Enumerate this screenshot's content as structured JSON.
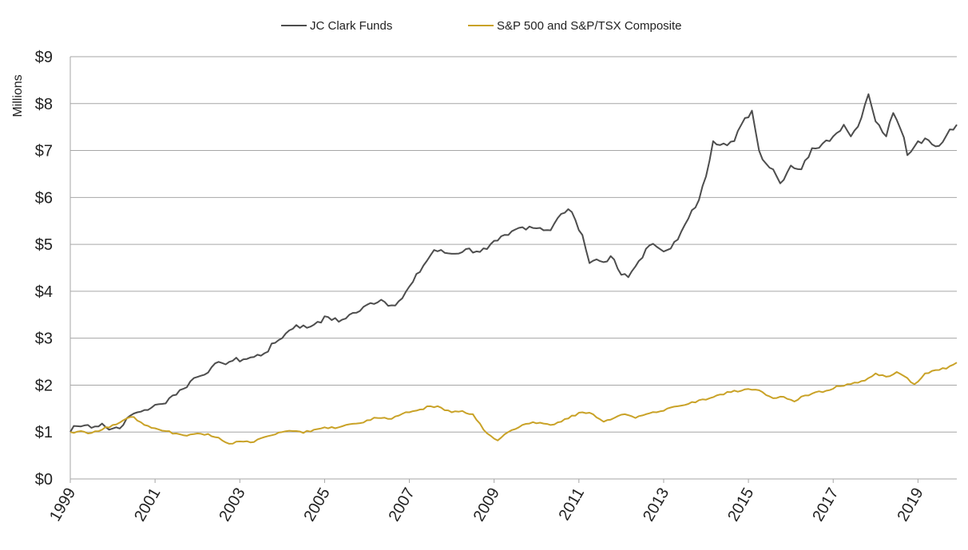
{
  "chart_data": {
    "type": "line",
    "title": "",
    "xlabel": "",
    "ylabel": "Millions",
    "x_start": "1999-01",
    "x_end": "2019-12",
    "x_ticks": [
      "1999",
      "2001",
      "2003",
      "2005",
      "2007",
      "2009",
      "2011",
      "2013",
      "2015",
      "2017",
      "2019"
    ],
    "ylim": [
      0,
      9
    ],
    "y_ticks": [
      "$0",
      "$1",
      "$2",
      "$3",
      "$4",
      "$5",
      "$6",
      "$7",
      "$8",
      "$9"
    ],
    "grid": "horizontal",
    "legend_position": "top-center",
    "series": [
      {
        "name": "JC Clark Funds",
        "color": "#4d4d4d",
        "points": [
          [
            "1999-01",
            1.0
          ],
          [
            "1999-02",
            1.13
          ],
          [
            "1999-04",
            1.12
          ],
          [
            "1999-06",
            1.15
          ],
          [
            "1999-08",
            1.12
          ],
          [
            "1999-10",
            1.18
          ],
          [
            "1999-12",
            1.05
          ],
          [
            "2000-02",
            1.1
          ],
          [
            "2000-04",
            1.15
          ],
          [
            "2000-06",
            1.35
          ],
          [
            "2000-08",
            1.42
          ],
          [
            "2000-10",
            1.47
          ],
          [
            "2000-12",
            1.52
          ],
          [
            "2001-03",
            1.6
          ],
          [
            "2001-06",
            1.78
          ],
          [
            "2001-09",
            1.92
          ],
          [
            "2001-12",
            2.15
          ],
          [
            "2002-02",
            2.2
          ],
          [
            "2002-05",
            2.38
          ],
          [
            "2002-08",
            2.47
          ],
          [
            "2002-11",
            2.52
          ],
          [
            "2003-02",
            2.55
          ],
          [
            "2003-05",
            2.6
          ],
          [
            "2003-08",
            2.68
          ],
          [
            "2003-11",
            2.9
          ],
          [
            "2004-02",
            3.1
          ],
          [
            "2004-05",
            3.28
          ],
          [
            "2004-08",
            3.22
          ],
          [
            "2004-11",
            3.35
          ],
          [
            "2005-02",
            3.45
          ],
          [
            "2005-05",
            3.35
          ],
          [
            "2005-08",
            3.5
          ],
          [
            "2005-11",
            3.58
          ],
          [
            "2006-02",
            3.75
          ],
          [
            "2006-05",
            3.82
          ],
          [
            "2006-08",
            3.7
          ],
          [
            "2006-11",
            3.85
          ],
          [
            "2007-02",
            4.2
          ],
          [
            "2007-05",
            4.55
          ],
          [
            "2007-08",
            4.88
          ],
          [
            "2007-11",
            4.82
          ],
          [
            "2008-02",
            4.8
          ],
          [
            "2008-05",
            4.9
          ],
          [
            "2008-08",
            4.85
          ],
          [
            "2008-11",
            4.9
          ],
          [
            "2009-02",
            5.08
          ],
          [
            "2009-05",
            5.2
          ],
          [
            "2009-08",
            5.35
          ],
          [
            "2009-11",
            5.38
          ],
          [
            "2010-02",
            5.35
          ],
          [
            "2010-05",
            5.3
          ],
          [
            "2010-08",
            5.65
          ],
          [
            "2010-10",
            5.75
          ],
          [
            "2010-12",
            5.52
          ],
          [
            "2011-02",
            5.2
          ],
          [
            "2011-04",
            4.6
          ],
          [
            "2011-06",
            4.68
          ],
          [
            "2011-08",
            4.62
          ],
          [
            "2011-10",
            4.75
          ],
          [
            "2012-01",
            4.35
          ],
          [
            "2012-03",
            4.3
          ],
          [
            "2012-06",
            4.65
          ],
          [
            "2012-09",
            4.98
          ],
          [
            "2012-11",
            4.95
          ],
          [
            "2013-02",
            4.88
          ],
          [
            "2013-05",
            5.1
          ],
          [
            "2013-08",
            5.55
          ],
          [
            "2013-11",
            5.95
          ],
          [
            "2014-01",
            6.45
          ],
          [
            "2014-03",
            7.2
          ],
          [
            "2014-06",
            7.15
          ],
          [
            "2014-09",
            7.2
          ],
          [
            "2014-11",
            7.55
          ],
          [
            "2015-02",
            7.85
          ],
          [
            "2015-04",
            7.0
          ],
          [
            "2015-06",
            6.72
          ],
          [
            "2015-08",
            6.6
          ],
          [
            "2015-10",
            6.3
          ],
          [
            "2016-01",
            6.68
          ],
          [
            "2016-04",
            6.6
          ],
          [
            "2016-07",
            7.05
          ],
          [
            "2016-10",
            7.15
          ],
          [
            "2017-01",
            7.3
          ],
          [
            "2017-04",
            7.55
          ],
          [
            "2017-06",
            7.3
          ],
          [
            "2017-09",
            7.7
          ],
          [
            "2017-11",
            8.2
          ],
          [
            "2018-01",
            7.62
          ],
          [
            "2018-04",
            7.3
          ],
          [
            "2018-06",
            7.8
          ],
          [
            "2018-09",
            7.28
          ],
          [
            "2018-10",
            6.9
          ],
          [
            "2019-01",
            7.2
          ],
          [
            "2019-04",
            7.22
          ],
          [
            "2019-07",
            7.1
          ],
          [
            "2019-10",
            7.45
          ],
          [
            "2019-12",
            7.55
          ]
        ]
      },
      {
        "name": "S&P 500 and S&P/TSX Composite",
        "color": "#c9a227",
        "points": [
          [
            "1999-01",
            1.0
          ],
          [
            "1999-04",
            1.02
          ],
          [
            "1999-07",
            0.98
          ],
          [
            "1999-10",
            1.05
          ],
          [
            "2000-01",
            1.15
          ],
          [
            "2000-04",
            1.25
          ],
          [
            "2000-07",
            1.32
          ],
          [
            "2000-10",
            1.15
          ],
          [
            "2001-01",
            1.08
          ],
          [
            "2001-04",
            1.02
          ],
          [
            "2001-07",
            0.97
          ],
          [
            "2001-10",
            0.92
          ],
          [
            "2002-01",
            0.97
          ],
          [
            "2002-04",
            0.96
          ],
          [
            "2002-07",
            0.88
          ],
          [
            "2002-10",
            0.75
          ],
          [
            "2003-01",
            0.8
          ],
          [
            "2003-04",
            0.78
          ],
          [
            "2003-07",
            0.87
          ],
          [
            "2003-10",
            0.93
          ],
          [
            "2004-01",
            1.0
          ],
          [
            "2004-04",
            1.02
          ],
          [
            "2004-07",
            0.98
          ],
          [
            "2004-10",
            1.05
          ],
          [
            "2005-01",
            1.1
          ],
          [
            "2005-04",
            1.08
          ],
          [
            "2005-07",
            1.15
          ],
          [
            "2005-10",
            1.18
          ],
          [
            "2006-01",
            1.25
          ],
          [
            "2006-04",
            1.3
          ],
          [
            "2006-07",
            1.28
          ],
          [
            "2006-10",
            1.35
          ],
          [
            "2007-01",
            1.42
          ],
          [
            "2007-04",
            1.48
          ],
          [
            "2007-07",
            1.55
          ],
          [
            "2007-10",
            1.52
          ],
          [
            "2008-01",
            1.42
          ],
          [
            "2008-04",
            1.45
          ],
          [
            "2008-07",
            1.38
          ],
          [
            "2008-10",
            1.05
          ],
          [
            "2008-12",
            0.92
          ],
          [
            "2009-02",
            0.82
          ],
          [
            "2009-05",
            1.0
          ],
          [
            "2009-08",
            1.1
          ],
          [
            "2009-11",
            1.18
          ],
          [
            "2010-02",
            1.2
          ],
          [
            "2010-05",
            1.15
          ],
          [
            "2010-08",
            1.22
          ],
          [
            "2010-11",
            1.35
          ],
          [
            "2011-02",
            1.42
          ],
          [
            "2011-05",
            1.38
          ],
          [
            "2011-08",
            1.22
          ],
          [
            "2011-11",
            1.3
          ],
          [
            "2012-02",
            1.38
          ],
          [
            "2012-05",
            1.3
          ],
          [
            "2012-08",
            1.38
          ],
          [
            "2012-11",
            1.42
          ],
          [
            "2013-02",
            1.5
          ],
          [
            "2013-05",
            1.55
          ],
          [
            "2013-08",
            1.6
          ],
          [
            "2013-11",
            1.68
          ],
          [
            "2014-02",
            1.72
          ],
          [
            "2014-05",
            1.8
          ],
          [
            "2014-08",
            1.85
          ],
          [
            "2014-11",
            1.88
          ],
          [
            "2015-02",
            1.9
          ],
          [
            "2015-05",
            1.85
          ],
          [
            "2015-08",
            1.72
          ],
          [
            "2015-11",
            1.75
          ],
          [
            "2016-02",
            1.65
          ],
          [
            "2016-05",
            1.78
          ],
          [
            "2016-08",
            1.85
          ],
          [
            "2016-11",
            1.88
          ],
          [
            "2017-02",
            1.98
          ],
          [
            "2017-05",
            2.02
          ],
          [
            "2017-08",
            2.05
          ],
          [
            "2017-11",
            2.15
          ],
          [
            "2018-01",
            2.25
          ],
          [
            "2018-04",
            2.18
          ],
          [
            "2018-07",
            2.28
          ],
          [
            "2018-10",
            2.15
          ],
          [
            "2018-12",
            2.02
          ],
          [
            "2019-03",
            2.25
          ],
          [
            "2019-06",
            2.32
          ],
          [
            "2019-09",
            2.35
          ],
          [
            "2019-12",
            2.48
          ]
        ]
      }
    ]
  }
}
